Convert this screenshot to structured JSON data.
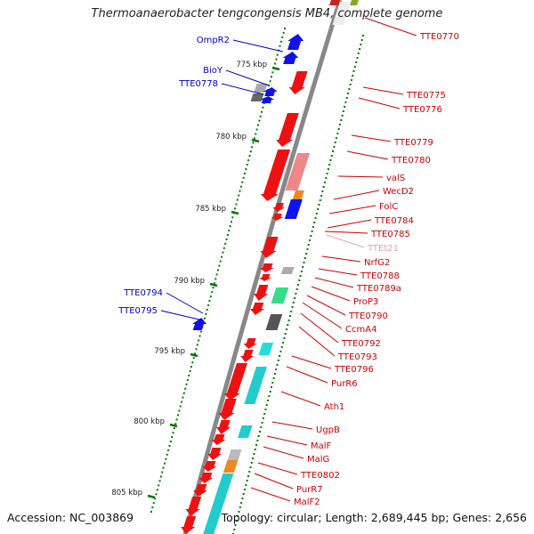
{
  "title": "Thermoanaerobacter tengcongensis MB4, complete genome",
  "accession": "Accession: NC_003869",
  "topology": "Topology: circular; Length: 2,689,445 bp; Genes: 2,656",
  "colors": {
    "backbone": "#888888",
    "tick": "#007700",
    "reverse_label": "#0000cc",
    "forward_label": "#cc0000",
    "trna_label": "#ee99bb"
  },
  "kbp_labels": [
    "775 kbp",
    "780 kbp",
    "785 kbp",
    "790 kbp",
    "795 kbp",
    "800 kbp",
    "805 kbp"
  ],
  "reverse_genes": [
    "OmpR2",
    "BioY",
    "TTE0778",
    "TTE0794",
    "TTE0795"
  ],
  "forward_genes": [
    "TTE0770",
    "TTE0775",
    "TTE0776",
    "TTE0779",
    "TTE0780",
    "valS",
    "WecD2",
    "FolC",
    "TTE0784",
    "TTE0785",
    "TTEt21",
    "NrfG2",
    "TTE0788",
    "TTE0789a",
    "ProP3",
    "TTE0790",
    "CcmA4",
    "TTE0792",
    "TTE0793",
    "TTE0796",
    "PurR6",
    "Ath1",
    "UgpB",
    "MalF",
    "MalG",
    "TTE0802",
    "PurR7",
    "MalF2"
  ]
}
